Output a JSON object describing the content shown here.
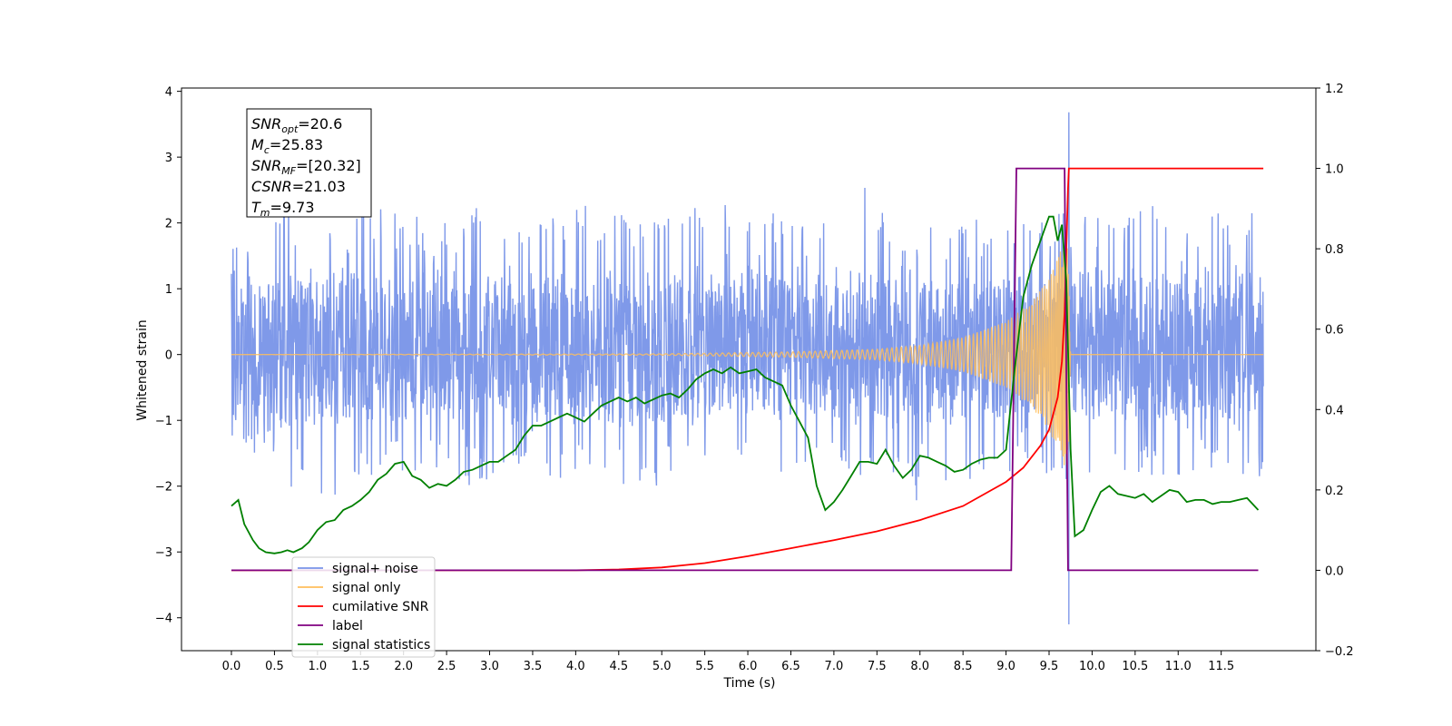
{
  "chart_data": {
    "type": "line",
    "xlabel": "Time (s)",
    "ylabel": "Whitened strain",
    "xlim": [
      -0.58,
      12.6
    ],
    "ylim_left": [
      -4.5,
      4.05
    ],
    "ylim_right": [
      -0.2,
      1.2
    ],
    "x_ticks": [
      "0.0",
      "0.5",
      "1.0",
      "1.5",
      "2.0",
      "2.5",
      "3.0",
      "3.5",
      "4.0",
      "4.5",
      "5.0",
      "5.5",
      "6.0",
      "6.5",
      "7.0",
      "7.5",
      "8.0",
      "8.5",
      "9.0",
      "9.5",
      "10.0",
      "10.5",
      "11.0",
      "11.5"
    ],
    "y_ticks_left": [
      "4",
      "3",
      "2",
      "1",
      "0",
      "−1",
      "−2",
      "−3",
      "−4"
    ],
    "y_ticks_right": [
      "1.2",
      "1.0",
      "0.8",
      "0.6",
      "0.4",
      "0.2",
      "0.0",
      "−0.2"
    ],
    "annotation": [
      {
        "sym": "SNR",
        "sub": "opt",
        "value": "=20.6"
      },
      {
        "sym": "M",
        "sub": "c",
        "value": "=25.83"
      },
      {
        "sym": "SNR",
        "sub": "MF",
        "value": "=[20.32]"
      },
      {
        "sym": "CSNR",
        "sub": "",
        "value": "=21.03"
      },
      {
        "sym": "T",
        "sub": "m",
        "value": "=9.73"
      }
    ],
    "legend_position": "lower-left",
    "legend": [
      {
        "label": "signal+ noise",
        "color": "#7893e8"
      },
      {
        "label": "signal only",
        "color": "#ffbe5c"
      },
      {
        "label": "cumilative SNR",
        "color": "#ff0000"
      },
      {
        "label": "label",
        "color": "#800080"
      },
      {
        "label": "signal statistics",
        "color": "#008000"
      }
    ],
    "series": [
      {
        "name": "signal+ noise",
        "axis": "left",
        "color": "#7893e8",
        "t_range": [
          0.0,
          11.99
        ],
        "envelope_max": [
          1.74,
          2.1,
          2.3,
          2.2,
          2.05,
          2.1,
          2.45,
          2.2,
          2.15,
          2.0,
          2.2,
          2.3,
          2.05,
          2.35,
          2.15,
          2.0,
          2.3,
          2.45,
          2.25,
          2.05,
          2.2,
          2.4,
          2.3,
          2.1,
          2.1,
          2.3,
          2.05,
          2.3,
          2.45,
          2.7,
          2.2,
          2.1,
          2.2,
          2.05,
          2.1,
          2.3,
          2.0,
          2.4,
          2.2,
          2.1,
          2.3,
          2.2,
          2.45,
          2.1,
          2.0,
          2.2,
          2.1,
          2.3
        ],
        "envelope_min": [
          -1.45,
          -1.55,
          -2.3,
          -1.9,
          -2.2,
          -2.1,
          -1.9,
          -1.85,
          -2.05,
          -1.8,
          -1.95,
          -2.0,
          -1.85,
          -1.9,
          -2.05,
          -1.9,
          -1.95,
          -1.85,
          -2.0,
          -2.3,
          -1.95,
          -1.9,
          -2.05,
          -1.8,
          -1.95,
          -1.9,
          -2.1,
          -1.85,
          -1.8,
          -1.95,
          -1.9,
          -2.25,
          -1.85,
          -2.1,
          -1.9,
          -2.0,
          -1.8,
          -1.95,
          -2.1,
          -1.85,
          -1.95,
          -2.0,
          -1.9,
          -1.85,
          -1.9,
          -1.8,
          -1.85,
          -1.9
        ],
        "spike": {
          "x": 9.73,
          "max": 3.68,
          "min": -4.1
        }
      },
      {
        "name": "signal only",
        "axis": "left",
        "color": "#ffbe5c",
        "chirp_amplitude": [
          [
            0.0,
            0.0
          ],
          [
            5.0,
            0.01
          ],
          [
            6.5,
            0.04
          ],
          [
            7.5,
            0.08
          ],
          [
            8.0,
            0.14
          ],
          [
            8.5,
            0.26
          ],
          [
            9.0,
            0.5
          ],
          [
            9.3,
            0.8
          ],
          [
            9.5,
            1.15
          ],
          [
            9.6,
            1.45
          ],
          [
            9.67,
            1.7
          ],
          [
            9.72,
            1.8
          ],
          [
            9.75,
            0.0
          ],
          [
            11.99,
            0.0
          ]
        ]
      },
      {
        "name": "cumilative SNR",
        "axis": "right",
        "color": "#ff0000",
        "points": [
          [
            0.0,
            0.0
          ],
          [
            4.0,
            0.0
          ],
          [
            4.5,
            0.002
          ],
          [
            5.0,
            0.007
          ],
          [
            5.5,
            0.018
          ],
          [
            6.0,
            0.035
          ],
          [
            6.5,
            0.055
          ],
          [
            7.0,
            0.075
          ],
          [
            7.5,
            0.097
          ],
          [
            8.0,
            0.125
          ],
          [
            8.5,
            0.16
          ],
          [
            9.0,
            0.22
          ],
          [
            9.2,
            0.255
          ],
          [
            9.4,
            0.31
          ],
          [
            9.5,
            0.35
          ],
          [
            9.6,
            0.43
          ],
          [
            9.65,
            0.52
          ],
          [
            9.68,
            0.64
          ],
          [
            9.7,
            0.8
          ],
          [
            9.72,
            0.95
          ],
          [
            9.73,
            1.0
          ],
          [
            11.99,
            1.0
          ]
        ]
      },
      {
        "name": "label",
        "axis": "right",
        "color": "#800080",
        "points": [
          [
            0.0,
            0.0
          ],
          [
            9.06,
            0.0
          ],
          [
            9.12,
            1.0
          ],
          [
            9.68,
            1.0
          ],
          [
            9.72,
            0.0
          ],
          [
            11.93,
            0.0
          ]
        ]
      },
      {
        "name": "signal statistics",
        "axis": "right",
        "color": "#008000",
        "points": [
          [
            0.0,
            0.16
          ],
          [
            0.08,
            0.175
          ],
          [
            0.15,
            0.115
          ],
          [
            0.25,
            0.075
          ],
          [
            0.32,
            0.055
          ],
          [
            0.4,
            0.045
          ],
          [
            0.5,
            0.042
          ],
          [
            0.58,
            0.045
          ],
          [
            0.65,
            0.05
          ],
          [
            0.72,
            0.045
          ],
          [
            0.82,
            0.055
          ],
          [
            0.9,
            0.07
          ],
          [
            1.0,
            0.1
          ],
          [
            1.1,
            0.12
          ],
          [
            1.2,
            0.125
          ],
          [
            1.3,
            0.15
          ],
          [
            1.4,
            0.16
          ],
          [
            1.5,
            0.175
          ],
          [
            1.6,
            0.195
          ],
          [
            1.7,
            0.225
          ],
          [
            1.8,
            0.24
          ],
          [
            1.9,
            0.265
          ],
          [
            2.0,
            0.27
          ],
          [
            2.1,
            0.235
          ],
          [
            2.2,
            0.225
          ],
          [
            2.3,
            0.205
          ],
          [
            2.4,
            0.215
          ],
          [
            2.5,
            0.21
          ],
          [
            2.6,
            0.225
          ],
          [
            2.7,
            0.245
          ],
          [
            2.8,
            0.25
          ],
          [
            2.9,
            0.26
          ],
          [
            3.0,
            0.27
          ],
          [
            3.1,
            0.27
          ],
          [
            3.2,
            0.285
          ],
          [
            3.3,
            0.3
          ],
          [
            3.4,
            0.335
          ],
          [
            3.5,
            0.36
          ],
          [
            3.6,
            0.36
          ],
          [
            3.7,
            0.37
          ],
          [
            3.8,
            0.38
          ],
          [
            3.9,
            0.39
          ],
          [
            4.0,
            0.38
          ],
          [
            4.1,
            0.37
          ],
          [
            4.2,
            0.39
          ],
          [
            4.3,
            0.41
          ],
          [
            4.4,
            0.42
          ],
          [
            4.5,
            0.43
          ],
          [
            4.6,
            0.42
          ],
          [
            4.7,
            0.43
          ],
          [
            4.8,
            0.415
          ],
          [
            4.9,
            0.425
          ],
          [
            5.0,
            0.435
          ],
          [
            5.1,
            0.44
          ],
          [
            5.2,
            0.43
          ],
          [
            5.3,
            0.45
          ],
          [
            5.4,
            0.475
          ],
          [
            5.5,
            0.49
          ],
          [
            5.6,
            0.5
          ],
          [
            5.7,
            0.49
          ],
          [
            5.8,
            0.505
          ],
          [
            5.9,
            0.49
          ],
          [
            6.0,
            0.495
          ],
          [
            6.1,
            0.5
          ],
          [
            6.2,
            0.48
          ],
          [
            6.3,
            0.47
          ],
          [
            6.4,
            0.46
          ],
          [
            6.5,
            0.41
          ],
          [
            6.6,
            0.37
          ],
          [
            6.7,
            0.33
          ],
          [
            6.8,
            0.21
          ],
          [
            6.9,
            0.15
          ],
          [
            7.0,
            0.17
          ],
          [
            7.1,
            0.2
          ],
          [
            7.2,
            0.235
          ],
          [
            7.3,
            0.27
          ],
          [
            7.4,
            0.27
          ],
          [
            7.5,
            0.265
          ],
          [
            7.6,
            0.3
          ],
          [
            7.7,
            0.26
          ],
          [
            7.8,
            0.23
          ],
          [
            7.9,
            0.25
          ],
          [
            8.0,
            0.285
          ],
          [
            8.1,
            0.28
          ],
          [
            8.2,
            0.27
          ],
          [
            8.3,
            0.26
          ],
          [
            8.4,
            0.245
          ],
          [
            8.5,
            0.25
          ],
          [
            8.6,
            0.265
          ],
          [
            8.7,
            0.275
          ],
          [
            8.8,
            0.28
          ],
          [
            8.9,
            0.28
          ],
          [
            9.0,
            0.3
          ],
          [
            9.1,
            0.5
          ],
          [
            9.2,
            0.68
          ],
          [
            9.3,
            0.76
          ],
          [
            9.4,
            0.82
          ],
          [
            9.5,
            0.88
          ],
          [
            9.55,
            0.88
          ],
          [
            9.6,
            0.82
          ],
          [
            9.65,
            0.86
          ],
          [
            9.7,
            0.72
          ],
          [
            9.75,
            0.3
          ],
          [
            9.8,
            0.085
          ],
          [
            9.9,
            0.1
          ],
          [
            10.0,
            0.15
          ],
          [
            10.1,
            0.195
          ],
          [
            10.2,
            0.21
          ],
          [
            10.3,
            0.19
          ],
          [
            10.4,
            0.185
          ],
          [
            10.5,
            0.18
          ],
          [
            10.6,
            0.19
          ],
          [
            10.7,
            0.17
          ],
          [
            10.8,
            0.185
          ],
          [
            10.9,
            0.2
          ],
          [
            11.0,
            0.195
          ],
          [
            11.1,
            0.17
          ],
          [
            11.2,
            0.175
          ],
          [
            11.3,
            0.175
          ],
          [
            11.4,
            0.165
          ],
          [
            11.5,
            0.17
          ],
          [
            11.6,
            0.17
          ],
          [
            11.7,
            0.175
          ],
          [
            11.8,
            0.18
          ],
          [
            11.93,
            0.15
          ]
        ]
      }
    ]
  }
}
